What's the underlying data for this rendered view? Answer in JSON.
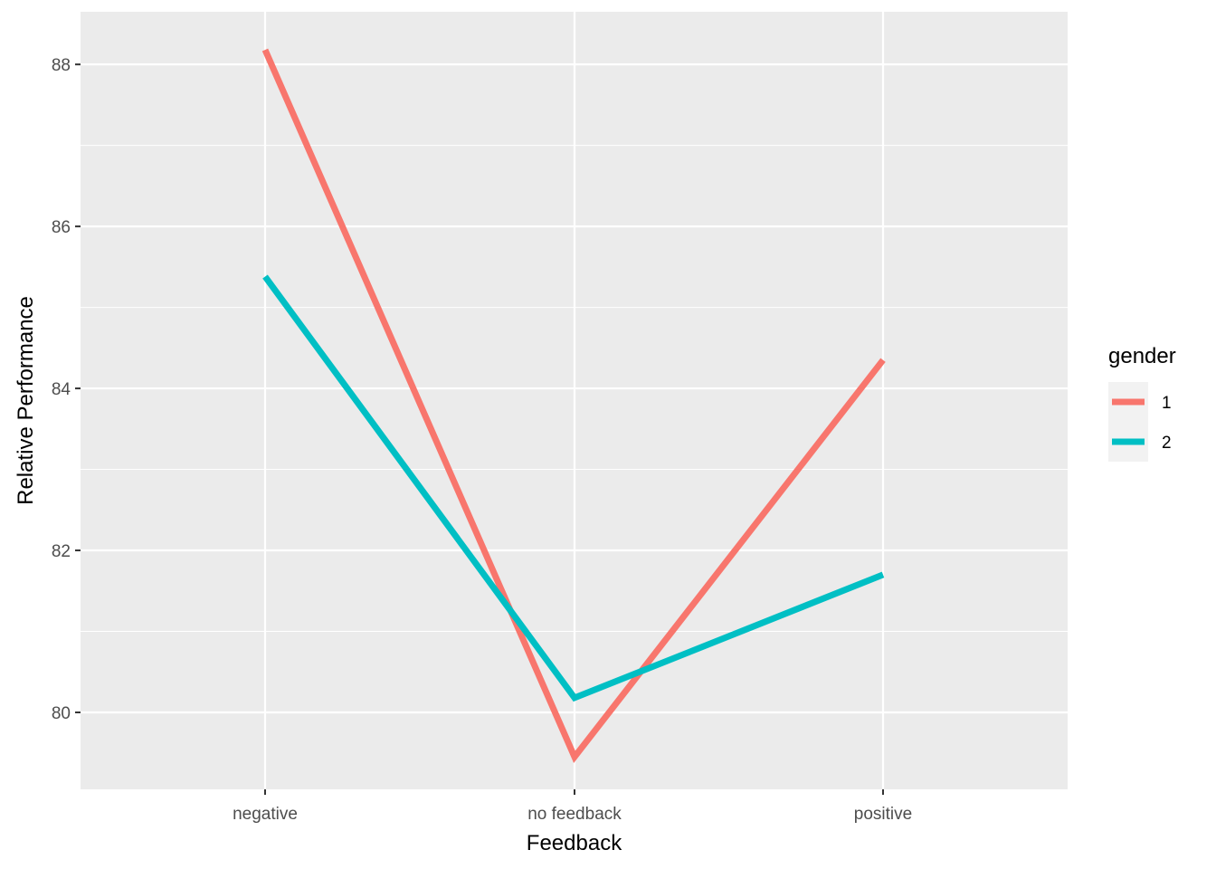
{
  "chart_data": {
    "type": "line",
    "title": "",
    "xlabel": "Feedback",
    "ylabel": "Relative Performance",
    "categories": [
      "negative",
      "no feedback",
      "positive"
    ],
    "ylim": [
      79.05,
      88.65
    ],
    "y_ticks": [
      80,
      82,
      84,
      86,
      88
    ],
    "y_tick_labels": [
      "80",
      "82",
      "84",
      "86",
      "88"
    ],
    "grid": true,
    "legend": {
      "title": "gender",
      "position": "right"
    },
    "series": [
      {
        "name": "1",
        "values": [
          88.18,
          79.45,
          84.35
        ],
        "color": "#F8766D"
      },
      {
        "name": "2",
        "values": [
          85.38,
          80.18,
          81.7
        ],
        "color": "#00BFC4"
      }
    ],
    "panel_background": "#EBEBEB",
    "grid_color": "#FFFFFF"
  }
}
